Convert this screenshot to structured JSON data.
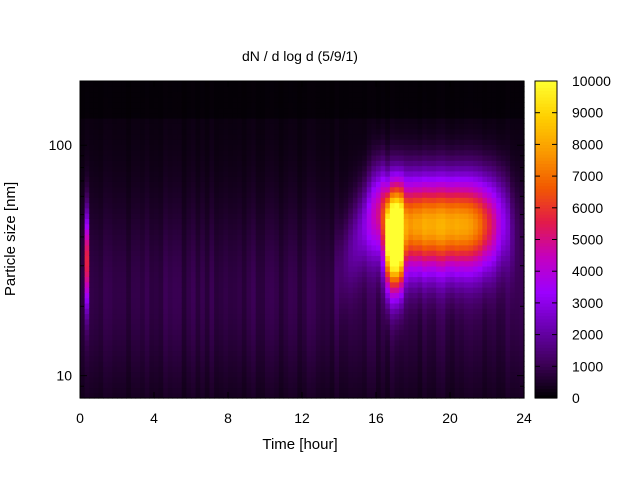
{
  "chart_data": {
    "type": "heatmap",
    "title": "dN / d log d (5/9/1)",
    "xlabel": "Time [hour]",
    "ylabel": "Particle size [nm]",
    "xlim": [
      0,
      24
    ],
    "ylim": [
      8,
      190
    ],
    "y_scale": "log",
    "x_ticks": [
      0,
      4,
      8,
      12,
      16,
      20,
      24
    ],
    "x_tick_labels": [
      "0",
      "4",
      "8",
      "12",
      "16",
      "20",
      "24"
    ],
    "y_ticks": [
      10,
      100
    ],
    "y_tick_labels": [
      "10",
      "100"
    ],
    "colorbar": {
      "min": 0,
      "max": 10000,
      "ticks": [
        0,
        1000,
        2000,
        3000,
        4000,
        5000,
        6000,
        7000,
        8000,
        9000,
        10000
      ],
      "tick_labels": [
        "0",
        "1000",
        "2000",
        "3000",
        "4000",
        "5000",
        "6000",
        "7000",
        "8000",
        "9000",
        "10000"
      ],
      "palette": [
        "#000000",
        "#3d0058",
        "#6a00b0",
        "#9b00ff",
        "#c400c0",
        "#e21a4a",
        "#f25a00",
        "#fa9a00",
        "#ffd000",
        "#ffff30"
      ]
    },
    "features": [
      {
        "time_center": 19.5,
        "time_width": 6.5,
        "size_center": 45,
        "peak": 7200
      },
      {
        "time_center": 0.3,
        "time_width": 0.25,
        "size_center": 32,
        "peak": 5400
      },
      {
        "time_center": 17.0,
        "time_width": 1.0,
        "size_center": 38,
        "peak": 9100
      }
    ],
    "grid": false
  }
}
